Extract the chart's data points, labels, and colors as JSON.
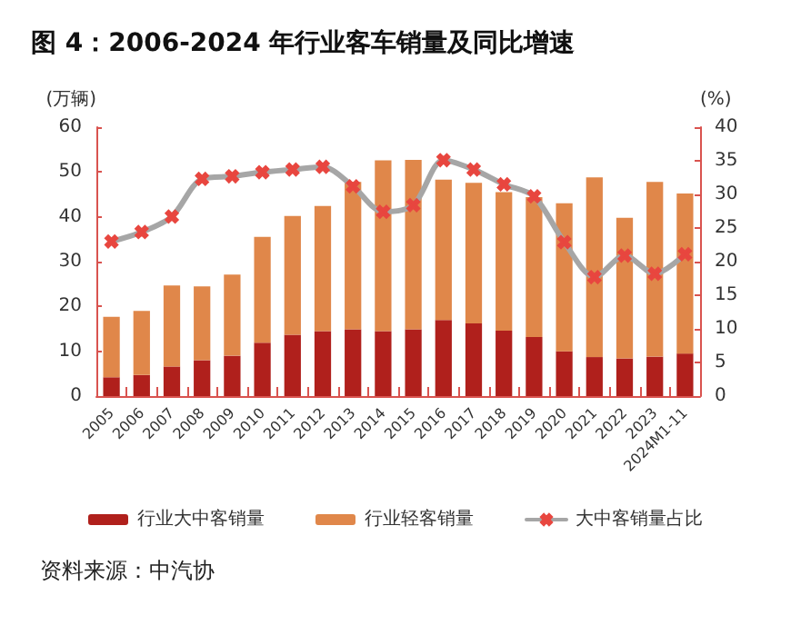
{
  "chart_data": {
    "type": "bar",
    "title": "图 4：2006-2024 年行业客车销量及同比增速",
    "ylabel": "(万辆)",
    "y2label": "(%)",
    "categories": [
      "2005",
      "2006",
      "2007",
      "2008",
      "2009",
      "2010",
      "2011",
      "2012",
      "2013",
      "2014",
      "2015",
      "2016",
      "2017",
      "2018",
      "2019",
      "2020",
      "2021",
      "2022",
      "2023",
      "2024M1-11"
    ],
    "stacked": true,
    "series": [
      {
        "name": "行业大中客销量",
        "color": "#b0201c",
        "values": [
          4.2,
          4.7,
          6.6,
          8,
          9,
          11.9,
          13.7,
          14.5,
          14.9,
          14.5,
          14.9,
          17,
          16.2,
          14.6,
          13.2,
          10,
          8.7,
          8.4,
          8.8,
          9.5
        ]
      },
      {
        "name": "行业轻客销量",
        "color": "#e0874a",
        "values": [
          13.5,
          14.3,
          18.1,
          16.5,
          18.1,
          23.6,
          26.5,
          27.9,
          32.9,
          38.1,
          37.8,
          31.3,
          31.4,
          30.9,
          31.2,
          33,
          40.1,
          31.4,
          39,
          35.7
        ]
      },
      {
        "name": "大中客销量占比",
        "type": "line",
        "axis": "y2",
        "color": "#a6a6a6",
        "marker": "cross",
        "values": [
          23,
          24.4,
          26.7,
          32.3,
          32.7,
          33.3,
          33.7,
          34.1,
          31.2,
          27.4,
          28.4,
          35.1,
          33.7,
          31.5,
          29.7,
          22.9,
          17.7,
          20.9,
          18.2,
          21.1
        ]
      }
    ],
    "ylim": [
      0,
      60
    ],
    "yticks": [
      0,
      10,
      20,
      30,
      40,
      50,
      60
    ],
    "y2lim": [
      0,
      40
    ],
    "y2ticks": [
      0,
      5,
      10,
      15,
      20,
      25,
      30,
      35,
      40
    ],
    "grid": false,
    "legend": "bottom",
    "annotations": [
      "资料来源：中汽协"
    ]
  }
}
